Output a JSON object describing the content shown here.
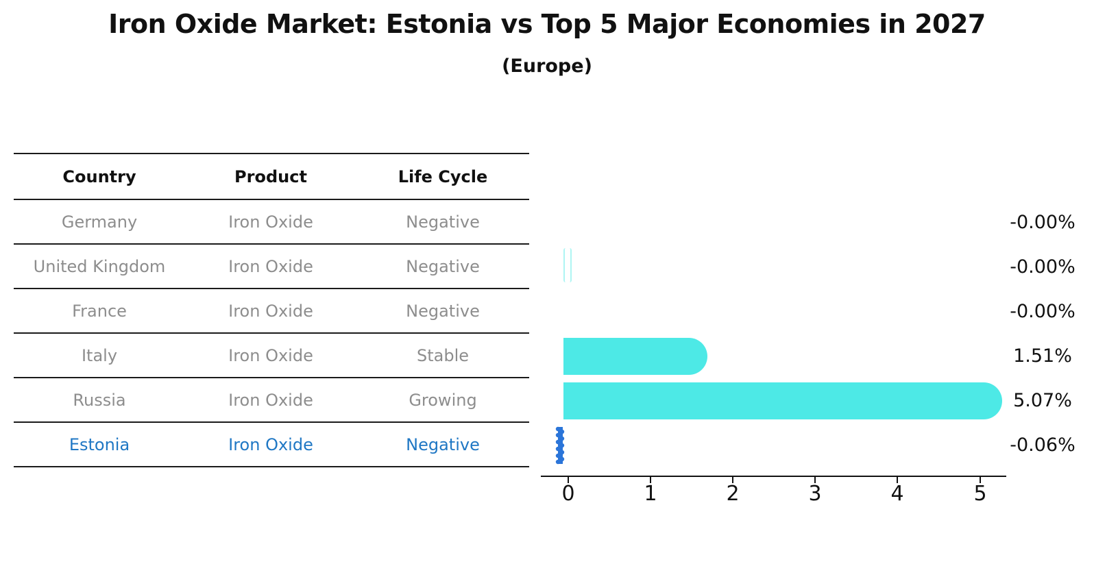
{
  "title": "Iron Oxide Market: Estonia vs Top 5 Major Economies in 2027",
  "subtitle": "(Europe)",
  "table": {
    "headers": [
      "Country",
      "Product",
      "Life Cycle"
    ],
    "rows": [
      {
        "country": "Germany",
        "product": "Iron Oxide",
        "life_cycle": "Negative",
        "highlight": false
      },
      {
        "country": "United Kingdom",
        "product": "Iron Oxide",
        "life_cycle": "Negative",
        "highlight": false
      },
      {
        "country": "France",
        "product": "Iron Oxide",
        "life_cycle": "Negative",
        "highlight": false
      },
      {
        "country": "Italy",
        "product": "Iron Oxide",
        "life_cycle": "Stable",
        "highlight": false
      },
      {
        "country": "Russia",
        "product": "Iron Oxide",
        "life_cycle": "Growing",
        "highlight": false
      },
      {
        "country": "Estonia",
        "product": "Iron Oxide",
        "life_cycle": "Negative",
        "highlight": true
      }
    ]
  },
  "chart_data": {
    "type": "bar",
    "orientation": "horizontal",
    "title": "Iron Oxide Market: Estonia vs Top 5 Major Economies in 2027",
    "subtitle": "(Europe)",
    "categories": [
      "Germany",
      "United Kingdom",
      "France",
      "Italy",
      "Russia",
      "Estonia"
    ],
    "values": [
      -0.0,
      -0.0,
      -0.0,
      1.51,
      5.07,
      -0.06
    ],
    "labels": [
      "-0.00%",
      "-0.00%",
      "-0.00%",
      "1.51%",
      "5.07%",
      "-0.06%"
    ],
    "unit": "%",
    "x_ticks": [
      "0",
      "1",
      "2",
      "3",
      "4",
      "5"
    ],
    "xlim": [
      -0.35,
      5.45
    ],
    "grid": false,
    "legend": "none",
    "bar_color": "#4DE9E6",
    "highlight_color": "#2B75D9",
    "highlight_index": 5
  },
  "colors": {
    "accent_blue": "#1F77C4",
    "bar_teal": "#4DE9E6",
    "bar_blue": "#2B75D9",
    "text_gray": "#8D8D8D",
    "text_black": "#111111",
    "line": "#1A1A1A"
  }
}
